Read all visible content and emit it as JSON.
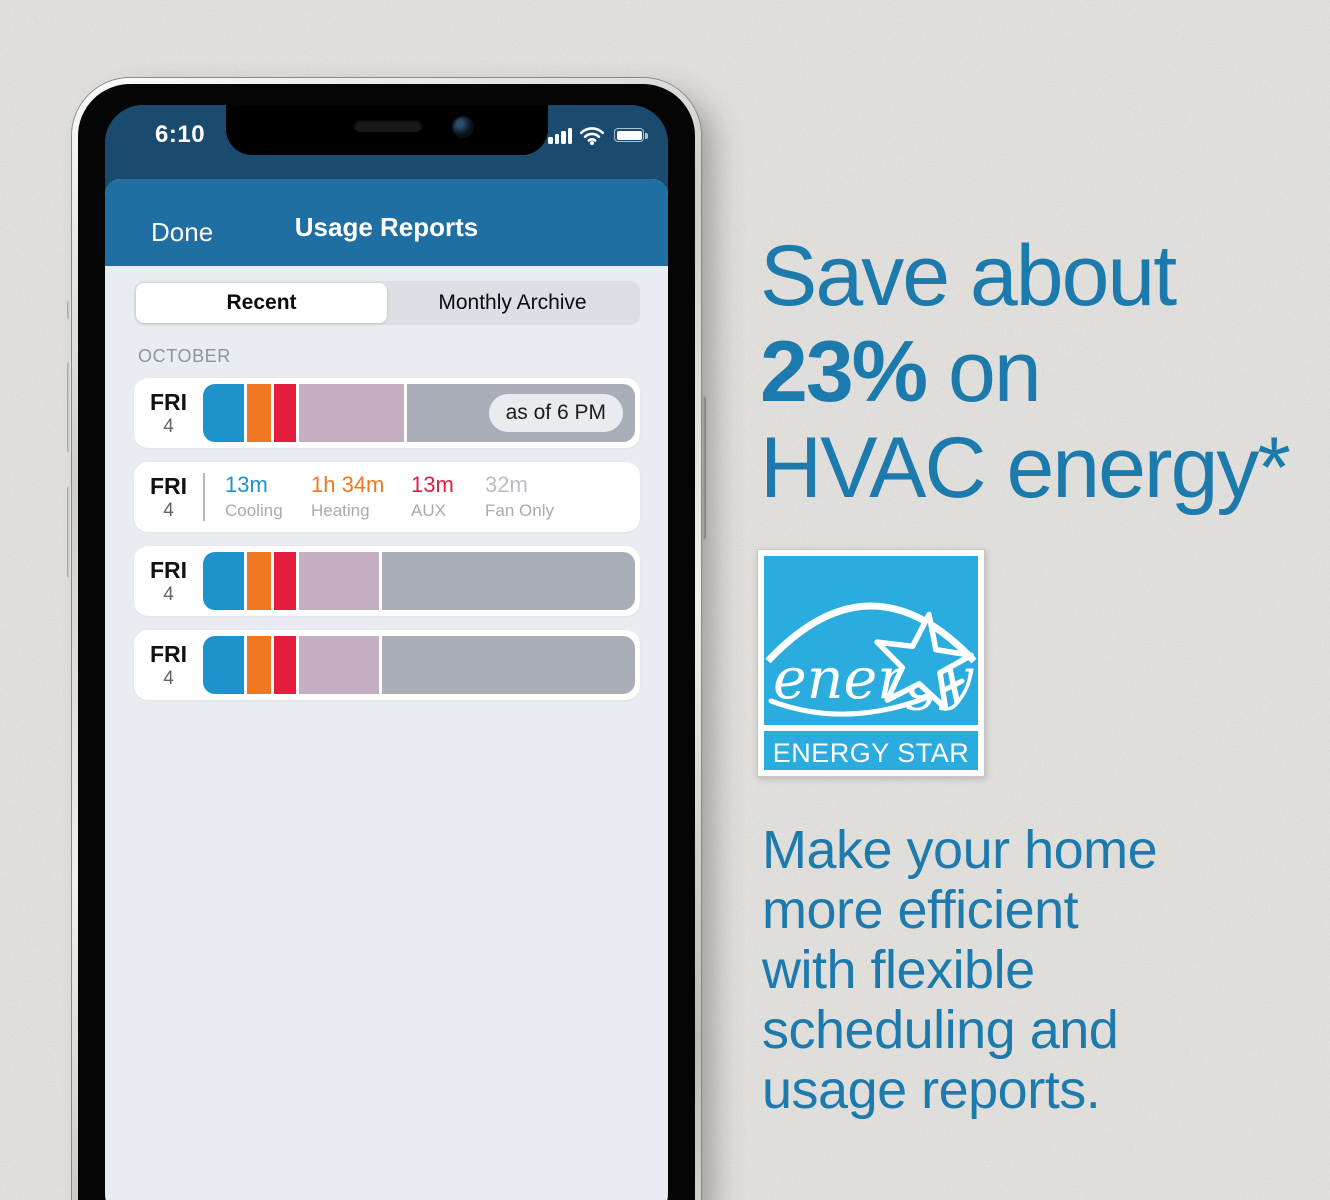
{
  "page": {
    "background_color": "#e9e8e5"
  },
  "phone": {
    "status_bar": {
      "time": "6:10",
      "icons": [
        "cellular-signal",
        "wifi",
        "battery"
      ],
      "background_color": "#1a4a6e"
    },
    "nav_bar": {
      "done_label": "Done",
      "title": "Usage Reports",
      "background_color": "#1f6fa2"
    },
    "tabs": {
      "options": [
        "Recent",
        "Monthly Archive"
      ],
      "selected": "Recent"
    },
    "report": {
      "section_label": "OCTOBER",
      "legend_colors": {
        "cooling": "#1e93cb",
        "heating": "#ef7722",
        "aux": "#e41d3d",
        "fan_only": "#c4afc2",
        "remaining": "#a9aeb8"
      },
      "stat_value_colors": {
        "cooling": "#1e93cb",
        "heating": "#ef7722",
        "aux": "#e41d3d",
        "fan_only": "#b9bec6"
      },
      "rows": [
        {
          "day": "FRI",
          "date": "4",
          "kind": "bar",
          "badge": "as of 6 PM",
          "segments": [
            {
              "key": "cooling",
              "pct": 9.5
            },
            {
              "key": "heating",
              "pct": 5.4
            },
            {
              "key": "aux",
              "pct": 5.2
            },
            {
              "key": "fan_only",
              "pct": 24.2
            },
            {
              "key": "remaining",
              "pct": 52.7
            }
          ]
        },
        {
          "day": "FRI",
          "date": "4",
          "kind": "stats",
          "stats": [
            {
              "key": "cooling",
              "value": "13m",
              "label": "Cooling"
            },
            {
              "key": "heating",
              "value": "1h 34m",
              "label": "Heating"
            },
            {
              "key": "aux",
              "value": "13m",
              "label": "AUX"
            },
            {
              "key": "fan_only",
              "value": "32m",
              "label": "Fan Only"
            }
          ]
        },
        {
          "day": "FRI",
          "date": "4",
          "kind": "bar",
          "badge": null,
          "segments": [
            {
              "key": "cooling",
              "pct": 9.5
            },
            {
              "key": "heating",
              "pct": 5.4
            },
            {
              "key": "aux",
              "pct": 5.2
            },
            {
              "key": "fan_only",
              "pct": 18.5
            },
            {
              "key": "remaining",
              "pct": 58.4
            }
          ]
        },
        {
          "day": "FRI",
          "date": "4",
          "kind": "bar",
          "badge": null,
          "segments": [
            {
              "key": "cooling",
              "pct": 9.5
            },
            {
              "key": "heating",
              "pct": 5.4
            },
            {
              "key": "aux",
              "pct": 5.2
            },
            {
              "key": "fan_only",
              "pct": 18.5
            },
            {
              "key": "remaining",
              "pct": 58.4
            }
          ]
        }
      ]
    }
  },
  "promo": {
    "headline_line1": "Save about",
    "headline_percent": "23%",
    "headline_line2_rest": " on",
    "headline_line3": "HVAC energy*",
    "body": "Make your home\nmore efficient\nwith flexible\nscheduling and\nusage reports.",
    "text_color": "#1d7aac"
  },
  "energy_star": {
    "script_text": "energy",
    "label": "ENERGY STAR",
    "background_color": "#2bacdf"
  }
}
